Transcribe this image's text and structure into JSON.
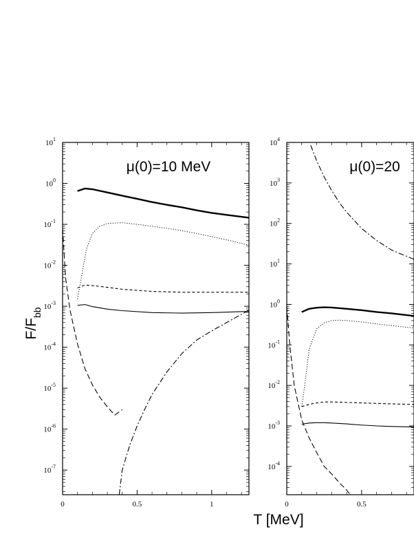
{
  "figure": {
    "ylabel": "F/F",
    "ylabel_sub": "bb",
    "xlabel": "T [MeV]"
  },
  "chart_data": [
    {
      "type": "line",
      "title": "μ(0)=10 MeV",
      "xlabel": "T [MeV]",
      "ylabel": "F/Fbb",
      "xlim": [
        0,
        1.25
      ],
      "ylim": [
        2.5e-08,
        10
      ],
      "yscale": "log",
      "grid": false,
      "x_ticks": [
        0,
        0.5,
        1
      ],
      "x_tick_labels": [
        "0",
        "0.5",
        "1"
      ],
      "y_ticks": [
        1e-07,
        1e-06,
        1e-05,
        0.0001,
        0.001,
        0.01,
        0.1,
        1,
        10
      ],
      "y_tick_labels": [
        {
          "base": "10",
          "exp": "-7"
        },
        {
          "base": "10",
          "exp": "-6"
        },
        {
          "base": "10",
          "exp": "-5"
        },
        {
          "base": "10",
          "exp": "-4"
        },
        {
          "base": "10",
          "exp": "-3"
        },
        {
          "base": "10",
          "exp": "-2"
        },
        {
          "base": "10",
          "exp": "-1"
        },
        {
          "base": "10",
          "exp": "0"
        },
        {
          "base": "10",
          "exp": "1"
        }
      ],
      "series": [
        {
          "style": "thick-solid",
          "x": [
            0.1,
            0.15,
            0.2,
            0.3,
            0.4,
            0.5,
            0.6,
            0.7,
            0.8,
            0.9,
            1.0,
            1.1,
            1.25
          ],
          "y": [
            0.65,
            0.75,
            0.72,
            0.6,
            0.5,
            0.42,
            0.35,
            0.3,
            0.26,
            0.22,
            0.19,
            0.17,
            0.145
          ]
        },
        {
          "style": "dotted",
          "x": [
            0.1,
            0.13,
            0.16,
            0.2,
            0.25,
            0.3,
            0.4,
            0.5,
            0.6,
            0.7,
            0.8,
            0.9,
            1.0,
            1.1,
            1.25
          ],
          "y": [
            0.0015,
            0.006,
            0.025,
            0.06,
            0.09,
            0.105,
            0.11,
            0.1,
            0.09,
            0.08,
            0.07,
            0.06,
            0.05,
            0.042,
            0.031
          ]
        },
        {
          "style": "dashed",
          "x": [
            0.1,
            0.15,
            0.2,
            0.3,
            0.4,
            0.6,
            0.8,
            1.0,
            1.25
          ],
          "y": [
            0.0028,
            0.0033,
            0.0032,
            0.0029,
            0.0026,
            0.0023,
            0.0022,
            0.0022,
            0.0022
          ]
        },
        {
          "style": "thin-solid",
          "x": [
            0.1,
            0.15,
            0.2,
            0.3,
            0.4,
            0.6,
            0.8,
            1.0,
            1.25
          ],
          "y": [
            0.00105,
            0.0011,
            0.00098,
            0.00085,
            0.00078,
            0.0007,
            0.00068,
            0.0007,
            0.00075
          ]
        },
        {
          "style": "long-dashed",
          "x": [
            0.0,
            0.02,
            0.05,
            0.1,
            0.15,
            0.2,
            0.25,
            0.3,
            0.35,
            0.4
          ],
          "y": [
            0.08,
            0.005,
            0.0008,
            0.00012,
            3e-05,
            1.2e-05,
            6e-06,
            3.5e-06,
            2.2e-06,
            3e-06
          ]
        },
        {
          "style": "dash-dot",
          "x": [
            0.38,
            0.4,
            0.45,
            0.5,
            0.55,
            0.6,
            0.7,
            0.8,
            0.9,
            1.0,
            1.1,
            1.25
          ],
          "y": [
            2.5e-08,
            1e-07,
            4e-07,
            1.2e-06,
            3e-06,
            7e-06,
            2.5e-05,
            7e-05,
            0.00015,
            0.00025,
            0.0004,
            0.0008
          ]
        }
      ]
    },
    {
      "type": "line",
      "title": "μ(0)=20",
      "xlabel": "T [MeV]",
      "ylabel": "F/Fbb",
      "xlim": [
        0,
        0.85
      ],
      "ylim": [
        2e-05,
        10000
      ],
      "yscale": "log",
      "grid": false,
      "x_ticks": [
        0,
        0.5
      ],
      "x_tick_labels": [
        "0",
        "0.5"
      ],
      "y_ticks": [
        0.0001,
        0.001,
        0.01,
        0.1,
        1,
        10,
        100,
        1000,
        10000
      ],
      "y_tick_labels": [
        {
          "base": "10",
          "exp": "-4"
        },
        {
          "base": "10",
          "exp": "-3"
        },
        {
          "base": "10",
          "exp": "-2"
        },
        {
          "base": "10",
          "exp": "-1"
        },
        {
          "base": "10",
          "exp": "0"
        },
        {
          "base": "10",
          "exp": "1"
        },
        {
          "base": "10",
          "exp": "2"
        },
        {
          "base": "10",
          "exp": "3"
        },
        {
          "base": "10",
          "exp": "4"
        }
      ],
      "series": [
        {
          "style": "thick-solid",
          "x": [
            0.1,
            0.15,
            0.2,
            0.25,
            0.3,
            0.4,
            0.5,
            0.6,
            0.7,
            0.85
          ],
          "y": [
            0.65,
            0.78,
            0.83,
            0.85,
            0.84,
            0.78,
            0.72,
            0.65,
            0.6,
            0.52
          ]
        },
        {
          "style": "dotted",
          "x": [
            0.1,
            0.12,
            0.15,
            0.2,
            0.25,
            0.3,
            0.35,
            0.4,
            0.5,
            0.6,
            0.7,
            0.85
          ],
          "y": [
            0.003,
            0.01,
            0.08,
            0.25,
            0.35,
            0.4,
            0.41,
            0.4,
            0.37,
            0.33,
            0.3,
            0.26
          ]
        },
        {
          "style": "dashed",
          "x": [
            0.1,
            0.15,
            0.2,
            0.25,
            0.3,
            0.4,
            0.5,
            0.6,
            0.7,
            0.85
          ],
          "y": [
            0.003,
            0.0034,
            0.0037,
            0.0039,
            0.0039,
            0.0038,
            0.0037,
            0.0036,
            0.0035,
            0.0034
          ]
        },
        {
          "style": "thin-solid",
          "x": [
            0.1,
            0.15,
            0.2,
            0.25,
            0.3,
            0.4,
            0.5,
            0.6,
            0.7,
            0.85
          ],
          "y": [
            0.0011,
            0.00118,
            0.0012,
            0.0012,
            0.00118,
            0.00112,
            0.00105,
            0.001,
            0.00097,
            0.00094
          ]
        },
        {
          "style": "long-dashed",
          "x": [
            0.0,
            0.02,
            0.05,
            0.1,
            0.15,
            0.2,
            0.25,
            0.3,
            0.35,
            0.4,
            0.42
          ],
          "y": [
            0.9,
            0.1,
            0.01,
            0.0014,
            0.0005,
            0.00022,
            0.0001,
            6.5e-05,
            4e-05,
            2.6e-05,
            2.1e-05
          ]
        },
        {
          "style": "dash-dot",
          "x": [
            0.16,
            0.2,
            0.25,
            0.3,
            0.35,
            0.4,
            0.5,
            0.6,
            0.7,
            0.85
          ],
          "y": [
            8500,
            3500,
            1400,
            650,
            330,
            190,
            75,
            38,
            22,
            13
          ]
        }
      ]
    }
  ]
}
